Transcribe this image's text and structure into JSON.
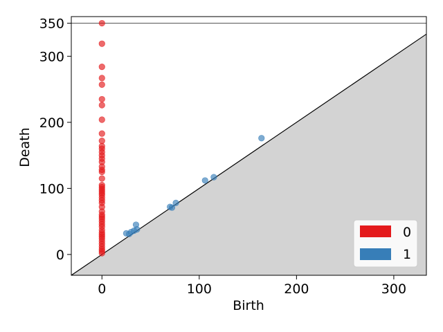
{
  "chart_data": {
    "type": "scatter",
    "title": "",
    "xlabel": "Birth",
    "ylabel": "Death",
    "xlim": [
      -31.5,
      333.5
    ],
    "ylim": [
      -31.5,
      360
    ],
    "xticks": [
      0,
      100,
      200,
      300
    ],
    "yticks": [
      0,
      100,
      200,
      300,
      350
    ],
    "infinity_line": 350,
    "diagonal": true,
    "grid": false,
    "legend_position": "bottom-right",
    "series": [
      {
        "name": "0",
        "color": "#e41a1c",
        "points": [
          [
            0,
            350
          ],
          [
            0,
            319
          ],
          [
            0,
            284
          ],
          [
            0,
            267
          ],
          [
            0,
            257
          ],
          [
            0,
            235
          ],
          [
            0,
            226
          ],
          [
            0,
            204
          ],
          [
            0,
            183
          ],
          [
            0,
            172
          ],
          [
            0,
            164
          ],
          [
            0,
            160
          ],
          [
            0,
            155
          ],
          [
            0,
            150
          ],
          [
            0,
            145
          ],
          [
            0,
            140
          ],
          [
            0,
            133
          ],
          [
            0,
            128
          ],
          [
            0,
            125
          ],
          [
            0,
            115
          ],
          [
            0,
            105
          ],
          [
            0,
            102
          ],
          [
            0,
            99
          ],
          [
            0,
            96
          ],
          [
            0,
            93
          ],
          [
            0,
            90
          ],
          [
            0,
            86
          ],
          [
            0,
            82
          ],
          [
            0,
            78
          ],
          [
            0,
            72
          ],
          [
            0,
            65
          ],
          [
            0,
            60
          ],
          [
            0,
            57
          ],
          [
            0,
            54
          ],
          [
            0,
            50
          ],
          [
            0,
            46
          ],
          [
            0,
            42
          ],
          [
            0,
            37
          ],
          [
            0,
            33
          ],
          [
            0,
            30
          ],
          [
            0,
            27
          ],
          [
            0,
            24
          ],
          [
            0,
            20
          ],
          [
            0,
            16
          ],
          [
            0,
            12
          ],
          [
            0,
            8
          ],
          [
            0,
            5
          ],
          [
            0,
            2
          ]
        ]
      },
      {
        "name": "1",
        "color": "#377eb8",
        "points": [
          [
            25,
            32
          ],
          [
            28,
            31
          ],
          [
            30,
            34
          ],
          [
            33,
            36
          ],
          [
            35,
            45
          ],
          [
            36,
            38
          ],
          [
            70,
            72
          ],
          [
            72,
            71
          ],
          [
            76,
            78
          ],
          [
            106,
            112
          ],
          [
            115,
            117
          ],
          [
            164,
            176
          ]
        ]
      }
    ]
  }
}
